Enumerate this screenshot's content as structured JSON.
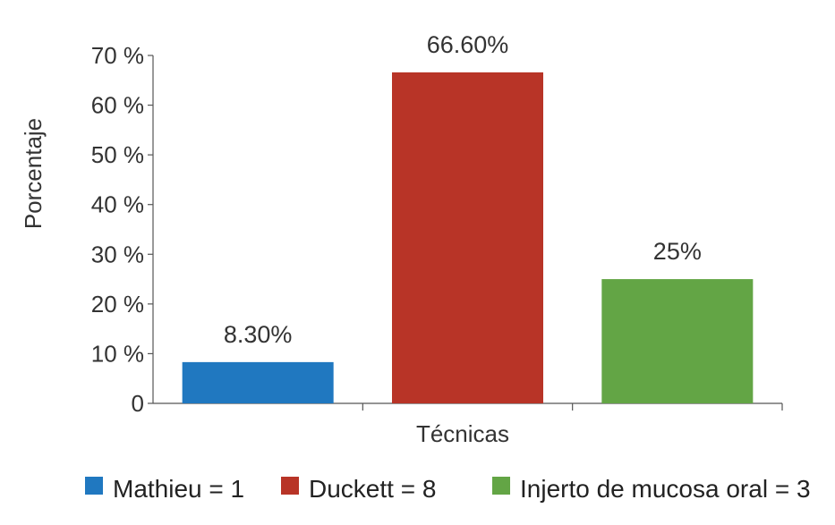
{
  "chart_data": {
    "type": "bar",
    "title": "",
    "xlabel": "Técnicas",
    "ylabel": "Porcentaje",
    "ylim": [
      0,
      70
    ],
    "yticks": [
      {
        "value": 0,
        "label": "0"
      },
      {
        "value": 10,
        "label": "10 %"
      },
      {
        "value": 20,
        "label": "20 %"
      },
      {
        "value": 30,
        "label": "30 %"
      },
      {
        "value": 40,
        "label": "40 %"
      },
      {
        "value": 50,
        "label": "50 %"
      },
      {
        "value": 60,
        "label": "60 %"
      },
      {
        "value": 70,
        "label": "70 %"
      }
    ],
    "grid": false,
    "legend_position": "bottom",
    "series": [
      {
        "name": "Mathieu  = 1",
        "value": 8.3,
        "label": "8.30%",
        "color": "#2078c0"
      },
      {
        "name": "Duckett = 8",
        "value": 66.6,
        "label": "66.60%",
        "color": "#b83427"
      },
      {
        "name": "Injerto de mucosa oral = 3",
        "value": 25,
        "label": "25%",
        "color": "#63a545"
      }
    ]
  }
}
